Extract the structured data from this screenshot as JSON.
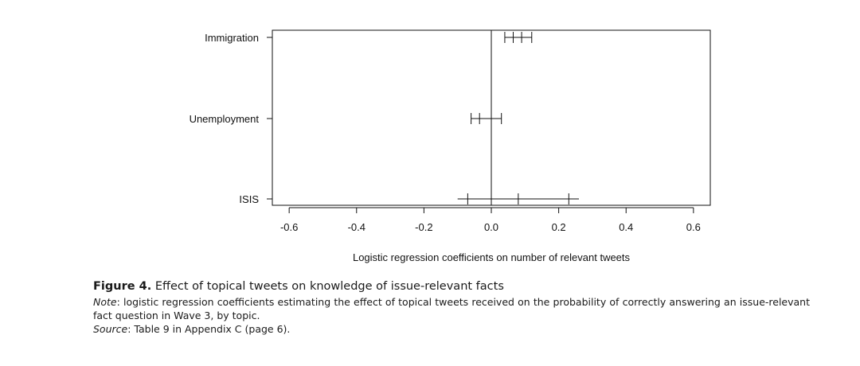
{
  "chart_data": {
    "type": "coefficient-plot",
    "categories": [
      "Immigration",
      "Unemployment",
      "ISIS"
    ],
    "estimates": [
      {
        "category": "Immigration",
        "ci95": [
          0.04,
          0.12
        ],
        "inner_ticks": [
          0.04,
          0.065,
          0.09,
          0.12
        ]
      },
      {
        "category": "Unemployment",
        "ci95": [
          -0.06,
          0.03
        ],
        "inner_ticks": [
          -0.06,
          -0.035,
          0.0,
          0.03
        ]
      },
      {
        "category": "ISIS",
        "ci95": [
          -0.1,
          0.26
        ],
        "inner_ticks": [
          -0.07,
          0.08,
          0.23
        ]
      }
    ],
    "reference_line": 0.0,
    "xlabel": "Logistic regression coefficients on number of relevant tweets",
    "xticks": [
      "-0.6",
      "-0.4",
      "-0.2",
      "0.0",
      "0.2",
      "0.4",
      "0.6"
    ],
    "xtick_values": [
      -0.6,
      -0.4,
      -0.2,
      0.0,
      0.2,
      0.4,
      0.6
    ],
    "xlim": [
      -0.65,
      0.65
    ]
  },
  "caption": {
    "label": "Figure 4.",
    "title": "Effect of topical tweets on knowledge of issue-relevant facts",
    "note_label": "Note",
    "note": ": logistic regression coefficients estimating the effect of topical tweets received on the probability of correctly answering an issue-relevant fact question in Wave 3, by topic.",
    "source_label": "Source",
    "source": ": Table 9 in Appendix C (page 6)."
  }
}
